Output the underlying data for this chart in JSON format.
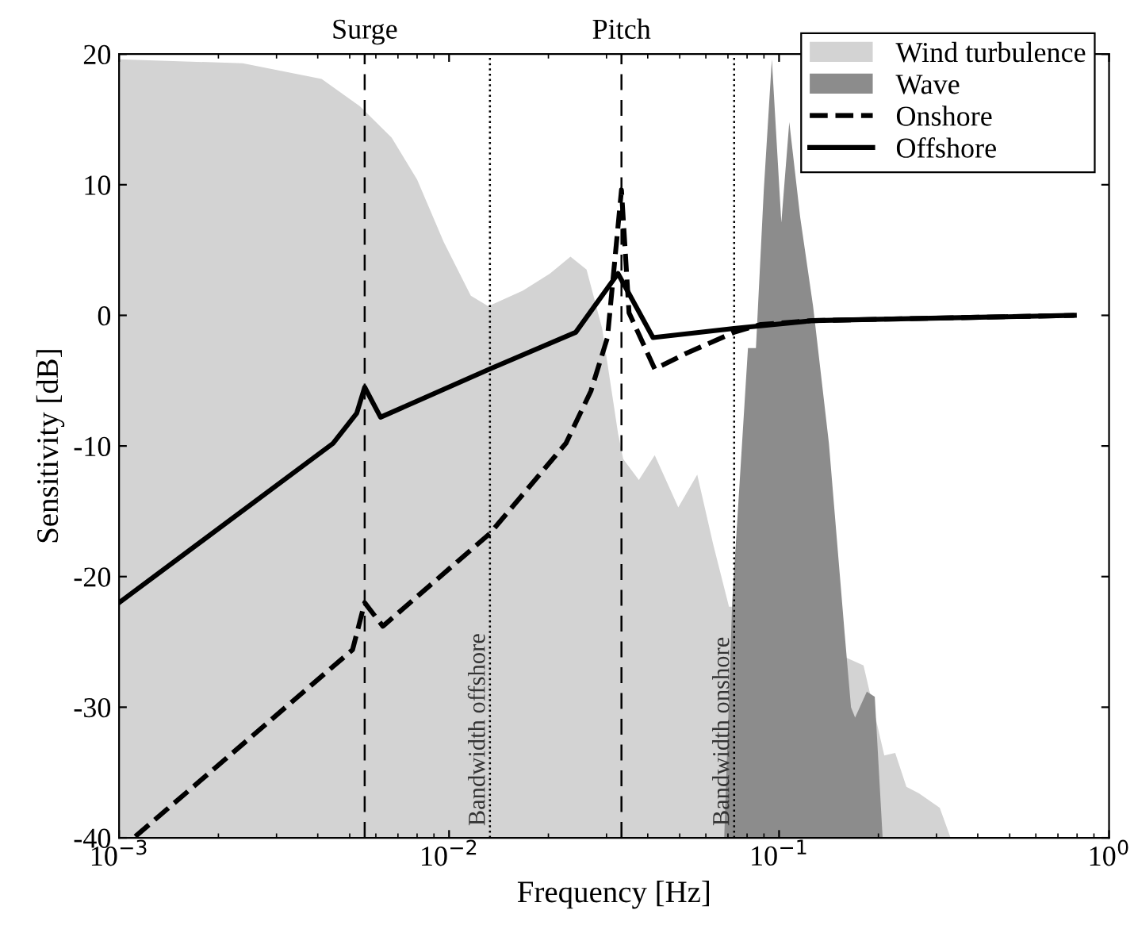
{
  "chart_data": {
    "type": "line",
    "xlabel": "Frequency [Hz]",
    "ylabel": "Sensitivity [dB]",
    "log": "x",
    "xlim": [
      0.001,
      1
    ],
    "ylim": [
      -40,
      20
    ],
    "xticks": [
      {
        "value": 0.001,
        "label": "10$^{−3}$"
      },
      {
        "value": 0.01,
        "label": "10$^{−2}$"
      },
      {
        "value": 0.1,
        "label": "10$^{−1}$"
      },
      {
        "value": 1,
        "label": "10$^{0}$"
      }
    ],
    "yticks": [
      -40,
      -30,
      -20,
      -10,
      0,
      10,
      20
    ],
    "grid": false,
    "legend": "top right",
    "series": [
      {
        "name": "Wind turbulence",
        "type": "area",
        "color": "#d3d3d3",
        "x": [
          0.001,
          0.001,
          0.00237,
          0.00411,
          0.00537,
          0.0067,
          0.008,
          0.00964,
          0.01164,
          0.01315,
          0.01675,
          0.02023,
          0.02333,
          0.0261,
          0.0291,
          0.0325,
          0.0337,
          0.0376,
          0.042,
          0.0495,
          0.0565,
          0.0631,
          0.0705,
          0.0724,
          0.1803,
          0.2084,
          0.2249,
          0.2432,
          0.2655,
          0.3069,
          0.331
        ],
        "values": [
          -40,
          19.6,
          19.3,
          18.1,
          16,
          13.6,
          10.4,
          5.6,
          1.5,
          0.7,
          1.9,
          3.2,
          4.5,
          3.5,
          -1.0,
          -9.0,
          -11,
          -12.6,
          -10.7,
          -14.7,
          -12.2,
          -17.5,
          -22.3,
          -22.3,
          -26.8,
          -33.7,
          -33.5,
          -36.1,
          -36.6,
          -37.7,
          -40
        ]
      },
      {
        "name": "Wave",
        "type": "area",
        "color": "#8c8c8c",
        "x": [
          0.0682,
          0.0721,
          0.0805,
          0.0851,
          0.0899,
          0.0951,
          0.1016,
          0.1074,
          0.1159,
          0.1268,
          0.1416,
          0.1581,
          0.1652,
          0.17,
          0.1845,
          0.195,
          0.206
        ],
        "values": [
          -40,
          -22,
          -2.5,
          -2.5,
          9.6,
          19.6,
          7.1,
          14.8,
          7.5,
          0.7,
          -9.8,
          -24.4,
          -30,
          -30.8,
          -28.8,
          -29.2,
          -40
        ]
      },
      {
        "name": "Onshore",
        "color": "#000000",
        "line_style": "dashed",
        "x": [
          0.00112,
          0.0051,
          0.00555,
          0.0063,
          0.0133,
          0.0226,
          0.0269,
          0.0302,
          0.0333,
          0.0351,
          0.042,
          0.0524,
          0.073,
          0.088,
          0.127,
          0.785
        ],
        "values": [
          -39.9,
          -25.6,
          -22,
          -23.8,
          -16.7,
          -9.8,
          -5.8,
          -1.7,
          9.6,
          0.2,
          -4.1,
          -2.9,
          -1.3,
          -0.7,
          -0.4,
          0.0
        ]
      },
      {
        "name": "Offshore",
        "color": "#000000",
        "line_style": "solid",
        "x": [
          0.001,
          0.00445,
          0.00525,
          0.00555,
          0.0062,
          0.0133,
          0.0242,
          0.0325,
          0.0415,
          0.073,
          0.127,
          0.785
        ],
        "values": [
          -22,
          -9.8,
          -7.5,
          -5.5,
          -7.8,
          -4.1,
          -1.3,
          3.2,
          -1.7,
          -1.0,
          -0.4,
          0.0
        ]
      }
    ],
    "ref_lines": [
      {
        "axis": "x",
        "value": 0.00555,
        "label": "Surge",
        "line_style": "dashed"
      },
      {
        "axis": "x",
        "value": 0.0333,
        "label": "Pitch",
        "line_style": "dashed"
      },
      {
        "axis": "x",
        "value": 0.0133,
        "label": "Bandwidth offshore",
        "line_style": "dotted"
      },
      {
        "axis": "x",
        "value": 0.0731,
        "label": "Bandwidth onshore",
        "line_style": "dotted"
      }
    ]
  }
}
